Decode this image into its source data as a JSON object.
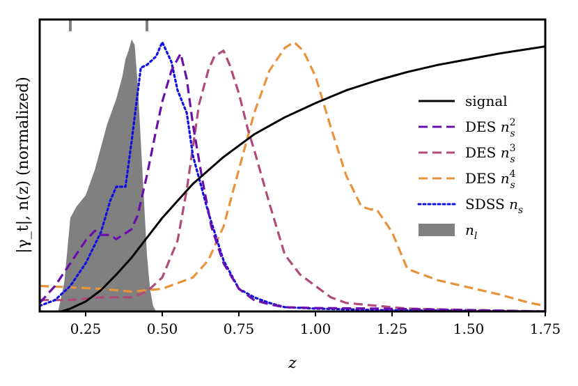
{
  "chart_data": {
    "type": "line",
    "xlabel": "z",
    "ylabel": "|γ_t|, n(z) (normalized)",
    "xlim": [
      0.1,
      1.75
    ],
    "ylim": [
      0,
      1.03
    ],
    "xticks": [
      "0.25",
      "0.50",
      "0.75",
      "1.00",
      "1.25",
      "1.50",
      "1.75"
    ],
    "xtick_values": [
      0.25,
      0.5,
      0.75,
      1.0,
      1.25,
      1.5,
      1.75
    ],
    "lens_bin_markers": [
      0.2,
      0.45
    ],
    "legend_position": "center-right",
    "series": [
      {
        "name": "signal",
        "label": "signal",
        "label_sub": "",
        "label_sup": "",
        "style": "solid",
        "color": "#000000",
        "x": [
          0.1,
          0.17,
          0.2,
          0.25,
          0.3,
          0.35,
          0.4,
          0.45,
          0.5,
          0.55,
          0.6,
          0.7,
          0.8,
          0.9,
          1.0,
          1.1,
          1.2,
          1.3,
          1.4,
          1.5,
          1.6,
          1.75
        ],
        "y": [
          0.0,
          0.0,
          0.01,
          0.035,
          0.075,
          0.13,
          0.19,
          0.26,
          0.33,
          0.39,
          0.45,
          0.545,
          0.625,
          0.685,
          0.735,
          0.78,
          0.815,
          0.845,
          0.87,
          0.89,
          0.91,
          0.935
        ]
      },
      {
        "name": "DES n_s^2",
        "label": "DES ",
        "label_sub": "s",
        "label_sup": "2",
        "style": "dashed",
        "color": "#6a0dad",
        "x": [
          0.1,
          0.15,
          0.2,
          0.25,
          0.28,
          0.3,
          0.33,
          0.35,
          0.4,
          0.42,
          0.45,
          0.48,
          0.5,
          0.53,
          0.56,
          0.58,
          0.6,
          0.63,
          0.66,
          0.7,
          0.75,
          0.8,
          0.85,
          0.9,
          1.0,
          1.2,
          1.5,
          1.75
        ],
        "y": [
          0.03,
          0.09,
          0.17,
          0.25,
          0.285,
          0.27,
          0.27,
          0.255,
          0.29,
          0.34,
          0.48,
          0.64,
          0.74,
          0.85,
          0.91,
          0.82,
          0.66,
          0.47,
          0.3,
          0.17,
          0.08,
          0.04,
          0.025,
          0.015,
          0.012,
          0.01,
          0.005,
          0.0
        ]
      },
      {
        "name": "DES n_s^3",
        "label": "DES ",
        "label_sub": "s",
        "label_sup": "3",
        "style": "dashed",
        "color": "#b04a7a",
        "x": [
          0.1,
          0.2,
          0.3,
          0.4,
          0.45,
          0.5,
          0.55,
          0.58,
          0.6,
          0.62,
          0.65,
          0.67,
          0.7,
          0.72,
          0.75,
          0.78,
          0.8,
          0.85,
          0.9,
          0.95,
          1.0,
          1.05,
          1.1,
          1.2,
          1.3,
          1.5,
          1.75
        ],
        "y": [
          0.04,
          0.04,
          0.05,
          0.05,
          0.07,
          0.12,
          0.25,
          0.43,
          0.58,
          0.73,
          0.85,
          0.9,
          0.92,
          0.87,
          0.77,
          0.64,
          0.57,
          0.38,
          0.2,
          0.13,
          0.09,
          0.05,
          0.03,
          0.02,
          0.01,
          0.005,
          0.0
        ]
      },
      {
        "name": "DES n_s^4",
        "label": "DES ",
        "label_sub": "s",
        "label_sup": "4",
        "style": "dashed",
        "color": "#e8923a",
        "x": [
          0.1,
          0.2,
          0.3,
          0.4,
          0.5,
          0.6,
          0.65,
          0.7,
          0.75,
          0.8,
          0.85,
          0.9,
          0.93,
          0.96,
          1.0,
          1.05,
          1.1,
          1.15,
          1.18,
          1.2,
          1.25,
          1.3,
          1.4,
          1.5,
          1.6,
          1.7,
          1.75
        ],
        "y": [
          0.09,
          0.085,
          0.08,
          0.07,
          0.08,
          0.12,
          0.18,
          0.3,
          0.5,
          0.7,
          0.85,
          0.93,
          0.95,
          0.92,
          0.83,
          0.65,
          0.48,
          0.37,
          0.36,
          0.36,
          0.28,
          0.15,
          0.11,
          0.085,
          0.06,
          0.03,
          0.02
        ]
      },
      {
        "name": "SDSS n_s",
        "label": "SDSS ",
        "label_sub": "s",
        "label_sup": "",
        "style": "dotted",
        "color": "#1010e0",
        "x": [
          0.1,
          0.15,
          0.2,
          0.25,
          0.3,
          0.33,
          0.35,
          0.38,
          0.4,
          0.43,
          0.45,
          0.48,
          0.5,
          0.53,
          0.55,
          0.58,
          0.6,
          0.65,
          0.7,
          0.75,
          0.8,
          0.85,
          0.9,
          1.0,
          1.2,
          1.5,
          1.75
        ],
        "y": [
          0.02,
          0.04,
          0.09,
          0.17,
          0.28,
          0.39,
          0.44,
          0.44,
          0.6,
          0.86,
          0.87,
          0.9,
          0.95,
          0.88,
          0.78,
          0.7,
          0.55,
          0.35,
          0.18,
          0.08,
          0.05,
          0.03,
          0.015,
          0.01,
          0.005,
          0.002,
          0.0
        ]
      },
      {
        "name": "n_l",
        "label": "",
        "label_sub": "l",
        "label_sup": "",
        "style": "filled",
        "color": "#808080",
        "x": [
          0.16,
          0.18,
          0.2,
          0.22,
          0.25,
          0.28,
          0.3,
          0.32,
          0.35,
          0.37,
          0.38,
          0.39,
          0.4,
          0.41,
          0.42,
          0.43,
          0.44,
          0.45,
          0.46,
          0.47,
          0.48
        ],
        "y": [
          0.0,
          0.1,
          0.33,
          0.37,
          0.41,
          0.5,
          0.58,
          0.66,
          0.75,
          0.83,
          0.89,
          0.92,
          0.96,
          0.94,
          0.8,
          0.6,
          0.4,
          0.2,
          0.08,
          0.02,
          0.0
        ]
      }
    ]
  }
}
